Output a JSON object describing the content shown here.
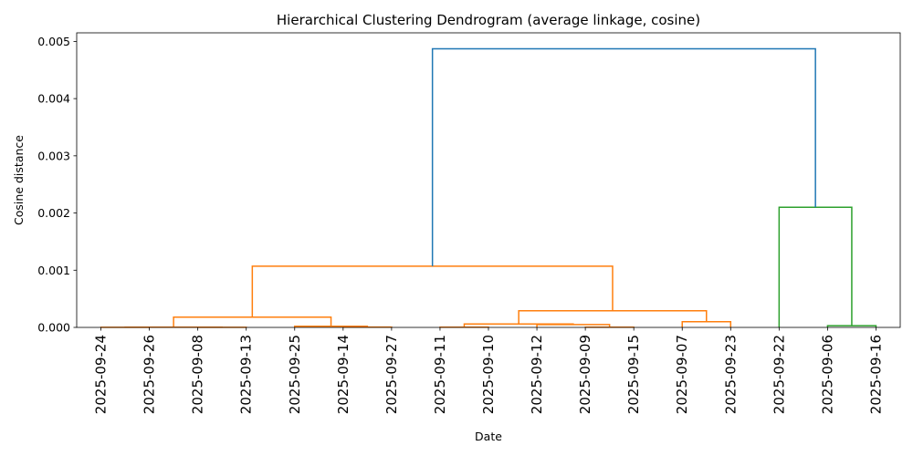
{
  "chart_data": {
    "type": "dendrogram",
    "title": "Hierarchical Clustering Dendrogram (average linkage, cosine)",
    "xlabel": "Date",
    "ylabel": "Cosine distance",
    "ylim": [
      0,
      0.00515
    ],
    "yticks": [
      "0.000",
      "0.001",
      "0.002",
      "0.003",
      "0.004",
      "0.005"
    ],
    "ytick_values": [
      0,
      0.001,
      0.002,
      0.003,
      0.004,
      0.005
    ],
    "leaves": [
      "2025-09-24",
      "2025-09-26",
      "2025-09-08",
      "2025-09-13",
      "2025-09-25",
      "2025-09-14",
      "2025-09-27",
      "2025-09-11",
      "2025-09-10",
      "2025-09-12",
      "2025-09-09",
      "2025-09-15",
      "2025-09-07",
      "2025-09-23",
      "2025-09-22",
      "2025-09-06",
      "2025-09-16"
    ],
    "colors": {
      "above_threshold": "#1f77b4",
      "cluster_1": "#ff7f0e",
      "cluster_2": "#2ca02c"
    },
    "grid": false,
    "merges": [
      {
        "left": 0,
        "right": 1,
        "height": 2e-06,
        "color": "cluster_1"
      },
      {
        "left": 2,
        "right": 3,
        "height": 2e-06,
        "color": "cluster_1"
      },
      {
        "left": 17,
        "right": 18,
        "height": 3e-06,
        "color": "cluster_1"
      },
      {
        "left": 5,
        "right": 6,
        "height": 5e-06,
        "color": "cluster_1"
      },
      {
        "left": 4,
        "right": 20,
        "height": 2e-05,
        "color": "cluster_1"
      },
      {
        "left": 19,
        "right": 21,
        "height": 0.00018,
        "color": "cluster_1"
      },
      {
        "left": 7,
        "right": 8,
        "height": 3e-06,
        "color": "cluster_1"
      },
      {
        "left": 10,
        "right": 11,
        "height": 4e-06,
        "color": "cluster_1"
      },
      {
        "left": 9,
        "right": 24,
        "height": 5e-05,
        "color": "cluster_1"
      },
      {
        "left": 23,
        "right": 25,
        "height": 6e-05,
        "color": "cluster_1"
      },
      {
        "left": 12,
        "right": 13,
        "height": 0.0001,
        "color": "cluster_1"
      },
      {
        "left": 26,
        "right": 27,
        "height": 0.00029,
        "color": "cluster_1"
      },
      {
        "left": 22,
        "right": 28,
        "height": 0.00107,
        "color": "cluster_1"
      },
      {
        "left": 15,
        "right": 16,
        "height": 3e-05,
        "color": "cluster_2"
      },
      {
        "left": 14,
        "right": 30,
        "height": 0.0021,
        "color": "cluster_2"
      },
      {
        "left": 29,
        "right": 31,
        "height": 0.00487,
        "color": "above_threshold"
      }
    ]
  }
}
